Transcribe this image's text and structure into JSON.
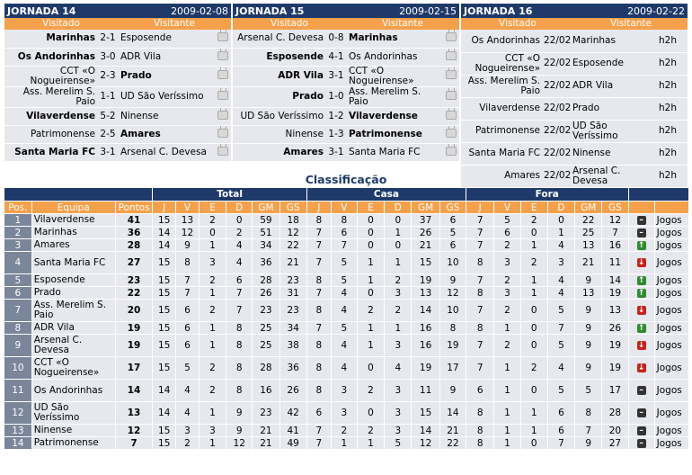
{
  "rounds": [
    {
      "title": "JORNADA 14",
      "date": "2009-02-08",
      "home_label": "Visitado",
      "away_label": "Visitante",
      "games": [
        {
          "home": "Marinhas",
          "score": "2-1",
          "away": "Esposende",
          "hb": true,
          "ab": false
        },
        {
          "home": "Os Andorinhas",
          "score": "3-0",
          "away": "ADR Vila",
          "hb": true,
          "ab": false
        },
        {
          "home": "CCT «O Nogueirense»",
          "score": "2-3",
          "away": "Prado",
          "hb": false,
          "ab": true
        },
        {
          "home": "Ass. Merelim S. Paio",
          "score": "1-1",
          "away": "UD São Veríssimo",
          "hb": false,
          "ab": false
        },
        {
          "home": "Vilaverdense",
          "score": "5-2",
          "away": "Ninense",
          "hb": true,
          "ab": false
        },
        {
          "home": "Patrimonense",
          "score": "2-5",
          "away": "Amares",
          "hb": false,
          "ab": true
        },
        {
          "home": "Santa Maria FC",
          "score": "3-1",
          "away": "Arsenal C. Devesa",
          "hb": true,
          "ab": false
        }
      ]
    },
    {
      "title": "JORNADA 15",
      "date": "2009-02-15",
      "home_label": "Visitado",
      "away_label": "Visitante",
      "games": [
        {
          "home": "Arsenal C. Devesa",
          "score": "0-8",
          "away": "Marinhas",
          "hb": false,
          "ab": true
        },
        {
          "home": "Esposende",
          "score": "4-1",
          "away": "Os Andorinhas",
          "hb": true,
          "ab": false
        },
        {
          "home": "ADR Vila",
          "score": "3-1",
          "away": "CCT «O Nogueirense»",
          "hb": true,
          "ab": false
        },
        {
          "home": "Prado",
          "score": "1-0",
          "away": "Ass. Merelim S. Paio",
          "hb": true,
          "ab": false
        },
        {
          "home": "UD São Veríssimo",
          "score": "1-2",
          "away": "Vilaverdense",
          "hb": false,
          "ab": true
        },
        {
          "home": "Ninense",
          "score": "1-3",
          "away": "Patrimonense",
          "hb": false,
          "ab": true
        },
        {
          "home": "Amares",
          "score": "3-1",
          "away": "Santa Maria FC",
          "hb": true,
          "ab": false
        }
      ]
    },
    {
      "title": "JORNADA 16",
      "date": "2009-02-22",
      "home_label": "Visitado",
      "away_label": "Visitante",
      "games": [
        {
          "home": "Os Andorinhas",
          "score": "22/02",
          "away": "Marinhas",
          "hb": false,
          "ab": false,
          "h2h": "h2h"
        },
        {
          "home": "CCT «O Nogueirense»",
          "score": "22/02",
          "away": "Esposende",
          "hb": false,
          "ab": false,
          "h2h": "h2h"
        },
        {
          "home": "Ass. Merelim S. Paio",
          "score": "22/02",
          "away": "ADR Vila",
          "hb": false,
          "ab": false,
          "h2h": "h2h"
        },
        {
          "home": "Vilaverdense",
          "score": "22/02",
          "away": "Prado",
          "hb": false,
          "ab": false,
          "h2h": "h2h"
        },
        {
          "home": "Patrimonense",
          "score": "22/02",
          "away": "UD São Veríssimo",
          "hb": false,
          "ab": false,
          "h2h": "h2h"
        },
        {
          "home": "Santa Maria FC",
          "score": "22/02",
          "away": "Ninense",
          "hb": false,
          "ab": false,
          "h2h": "h2h"
        },
        {
          "home": "Amares",
          "score": "22/02",
          "away": "Arsenal C. Devesa",
          "hb": false,
          "ab": false,
          "h2h": "h2h"
        }
      ]
    }
  ],
  "standings": {
    "title": "Classificação",
    "groups": {
      "total": "Total",
      "casa": "Casa",
      "fora": "Fora"
    },
    "headers": [
      "Pos.",
      "Equipa",
      "Pontos",
      "J",
      "V",
      "E",
      "D",
      "GM",
      "GS",
      "J",
      "V",
      "E",
      "D",
      "GM",
      "GS",
      "J",
      "V",
      "E",
      "D",
      "GM",
      "GS"
    ],
    "link_label": "Jogos",
    "rows": [
      {
        "pos": "1",
        "team": "Vilaverdense",
        "pts": "41",
        "t": [
          "15",
          "13",
          "2",
          "0",
          "59",
          "18"
        ],
        "c": [
          "8",
          "8",
          "0",
          "0",
          "37",
          "6"
        ],
        "f": [
          "7",
          "5",
          "2",
          "0",
          "22",
          "12"
        ],
        "trend": "same"
      },
      {
        "pos": "2",
        "team": "Marinhas",
        "pts": "36",
        "t": [
          "14",
          "12",
          "0",
          "2",
          "51",
          "12"
        ],
        "c": [
          "7",
          "6",
          "0",
          "1",
          "26",
          "5"
        ],
        "f": [
          "7",
          "6",
          "0",
          "1",
          "25",
          "7"
        ],
        "trend": "same"
      },
      {
        "pos": "3",
        "team": "Amares",
        "pts": "28",
        "t": [
          "14",
          "9",
          "1",
          "4",
          "34",
          "22"
        ],
        "c": [
          "7",
          "7",
          "0",
          "0",
          "21",
          "6"
        ],
        "f": [
          "7",
          "2",
          "1",
          "4",
          "13",
          "16"
        ],
        "trend": "up"
      },
      {
        "pos": "4",
        "team": "Santa Maria FC",
        "pts": "27",
        "t": [
          "15",
          "8",
          "3",
          "4",
          "36",
          "21"
        ],
        "c": [
          "7",
          "5",
          "1",
          "1",
          "15",
          "10"
        ],
        "f": [
          "8",
          "3",
          "2",
          "3",
          "21",
          "11"
        ],
        "trend": "down"
      },
      {
        "pos": "5",
        "team": "Esposende",
        "pts": "23",
        "t": [
          "15",
          "7",
          "2",
          "6",
          "28",
          "23"
        ],
        "c": [
          "8",
          "5",
          "1",
          "2",
          "19",
          "9"
        ],
        "f": [
          "7",
          "2",
          "1",
          "4",
          "9",
          "14"
        ],
        "trend": "up"
      },
      {
        "pos": "6",
        "team": "Prado",
        "pts": "22",
        "t": [
          "15",
          "7",
          "1",
          "7",
          "26",
          "31"
        ],
        "c": [
          "7",
          "4",
          "0",
          "3",
          "13",
          "12"
        ],
        "f": [
          "8",
          "3",
          "1",
          "4",
          "13",
          "19"
        ],
        "trend": "up"
      },
      {
        "pos": "7",
        "team": "Ass. Merelim S. Paio",
        "pts": "20",
        "t": [
          "15",
          "6",
          "2",
          "7",
          "23",
          "23"
        ],
        "c": [
          "8",
          "4",
          "2",
          "2",
          "14",
          "10"
        ],
        "f": [
          "7",
          "2",
          "0",
          "5",
          "9",
          "13"
        ],
        "trend": "down"
      },
      {
        "pos": "8",
        "team": "ADR Vila",
        "pts": "19",
        "t": [
          "15",
          "6",
          "1",
          "8",
          "25",
          "34"
        ],
        "c": [
          "7",
          "5",
          "1",
          "1",
          "16",
          "8"
        ],
        "f": [
          "8",
          "1",
          "0",
          "7",
          "9",
          "26"
        ],
        "trend": "up"
      },
      {
        "pos": "9",
        "team": "Arsenal C. Devesa",
        "pts": "19",
        "t": [
          "15",
          "6",
          "1",
          "8",
          "25",
          "38"
        ],
        "c": [
          "8",
          "4",
          "1",
          "3",
          "16",
          "19"
        ],
        "f": [
          "7",
          "2",
          "0",
          "5",
          "9",
          "19"
        ],
        "trend": "down"
      },
      {
        "pos": "10",
        "team": "CCT «O Nogueirense»",
        "pts": "17",
        "t": [
          "15",
          "5",
          "2",
          "8",
          "28",
          "36"
        ],
        "c": [
          "8",
          "4",
          "0",
          "4",
          "19",
          "17"
        ],
        "f": [
          "7",
          "1",
          "2",
          "4",
          "9",
          "19"
        ],
        "trend": "down"
      },
      {
        "pos": "11",
        "team": "Os Andorinhas",
        "pts": "14",
        "t": [
          "14",
          "4",
          "2",
          "8",
          "16",
          "26"
        ],
        "c": [
          "8",
          "3",
          "2",
          "3",
          "11",
          "9"
        ],
        "f": [
          "6",
          "1",
          "0",
          "5",
          "5",
          "17"
        ],
        "trend": "same"
      },
      {
        "pos": "12",
        "team": "UD São Veríssimo",
        "pts": "13",
        "t": [
          "14",
          "4",
          "1",
          "9",
          "23",
          "42"
        ],
        "c": [
          "6",
          "3",
          "0",
          "3",
          "15",
          "14"
        ],
        "f": [
          "8",
          "1",
          "1",
          "6",
          "8",
          "28"
        ],
        "trend": "same"
      },
      {
        "pos": "13",
        "team": "Ninense",
        "pts": "12",
        "t": [
          "15",
          "3",
          "3",
          "9",
          "21",
          "41"
        ],
        "c": [
          "7",
          "2",
          "2",
          "3",
          "14",
          "21"
        ],
        "f": [
          "8",
          "1",
          "1",
          "6",
          "7",
          "20"
        ],
        "trend": "same"
      },
      {
        "pos": "14",
        "team": "Patrimonense",
        "pts": "7",
        "t": [
          "15",
          "2",
          "1",
          "12",
          "21",
          "49"
        ],
        "c": [
          "7",
          "1",
          "1",
          "5",
          "12",
          "22"
        ],
        "f": [
          "8",
          "1",
          "0",
          "7",
          "9",
          "27"
        ],
        "trend": "same"
      }
    ]
  },
  "colors": {
    "navy": "#1f3a6a",
    "orange": "#f5a04a",
    "row": "#e6e8ee",
    "up": "#2e8b2e",
    "down": "#c8221a",
    "same": "#333333"
  }
}
